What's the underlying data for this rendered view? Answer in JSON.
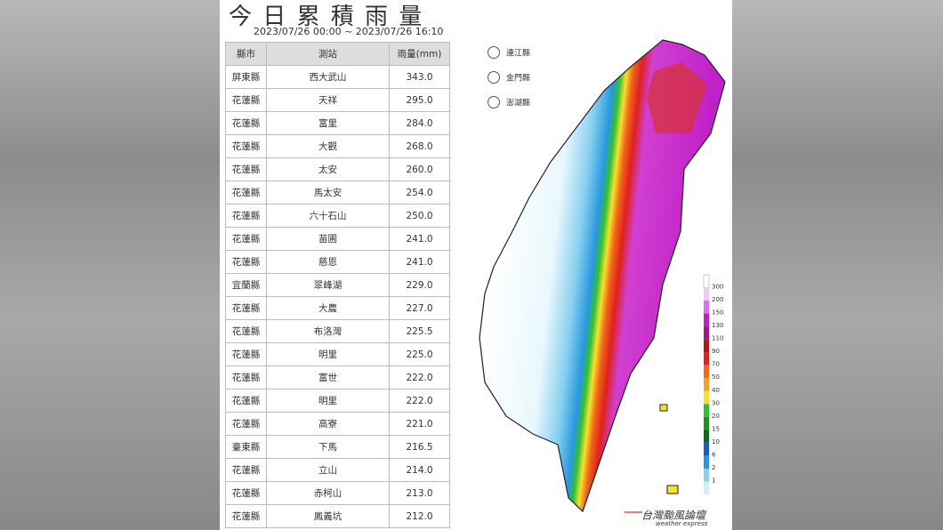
{
  "header": {
    "title": "今 日 累 積 雨 量",
    "subtitle": "2023/07/26 00:00 ~ 2023/07/26 16:10"
  },
  "table": {
    "header": [
      "縣市",
      "測站",
      "雨量(mm)"
    ],
    "rows": [
      [
        "屏東縣",
        "西大武山",
        "343.0"
      ],
      [
        "花蓮縣",
        "天祥",
        "295.0"
      ],
      [
        "花蓮縣",
        "富里",
        "284.0"
      ],
      [
        "花蓮縣",
        "大觀",
        "268.0"
      ],
      [
        "花蓮縣",
        "太安",
        "260.0"
      ],
      [
        "花蓮縣",
        "馬太安",
        "254.0"
      ],
      [
        "花蓮縣",
        "六十石山",
        "250.0"
      ],
      [
        "花蓮縣",
        "苗圃",
        "241.0"
      ],
      [
        "花蓮縣",
        "慈恩",
        "241.0"
      ],
      [
        "宜蘭縣",
        "翠峰湖",
        "229.0"
      ],
      [
        "花蓮縣",
        "大農",
        "227.0"
      ],
      [
        "花蓮縣",
        "布洛灣",
        "225.5"
      ],
      [
        "花蓮縣",
        "明里",
        "225.0"
      ],
      [
        "花蓮縣",
        "富世",
        "222.0"
      ],
      [
        "花蓮縣",
        "明里",
        "222.0"
      ],
      [
        "花蓮縣",
        "高寮",
        "221.0"
      ],
      [
        "臺東縣",
        "下馬",
        "216.5"
      ],
      [
        "花蓮縣",
        "立山",
        "214.0"
      ],
      [
        "花蓮縣",
        "赤柯山",
        "213.0"
      ],
      [
        "花蓮縣",
        "鳳義坑",
        "212.0"
      ]
    ]
  },
  "islands": [
    "連江縣",
    "金門縣",
    "澎湖縣"
  ],
  "legend": {
    "levels": [
      {
        "value": 300,
        "color": "#f4c8f4"
      },
      {
        "value": 200,
        "color": "#e070e8"
      },
      {
        "value": 150,
        "color": "#c020c8"
      },
      {
        "value": 130,
        "color": "#a01888"
      },
      {
        "value": 110,
        "color": "#b01818"
      },
      {
        "value": 90,
        "color": "#e02020"
      },
      {
        "value": 70,
        "color": "#f06818"
      },
      {
        "value": 50,
        "color": "#f8a020"
      },
      {
        "value": 40,
        "color": "#f8e030"
      },
      {
        "value": 30,
        "color": "#30c030"
      },
      {
        "value": 20,
        "color": "#209020"
      },
      {
        "value": 15,
        "color": "#106818"
      },
      {
        "value": 10,
        "color": "#1060c8"
      },
      {
        "value": 6,
        "color": "#2898e0"
      },
      {
        "value": 2,
        "color": "#88d0f0"
      },
      {
        "value": 1,
        "color": "#d0f0fa"
      }
    ]
  },
  "watermark": {
    "name": "台灣颱風論壇",
    "sub": "weather express"
  }
}
